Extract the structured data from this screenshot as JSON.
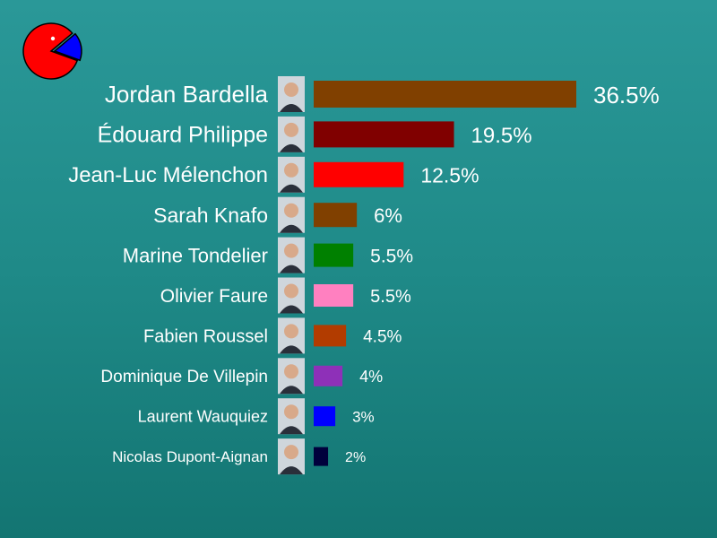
{
  "chart_data": {
    "type": "bar",
    "orientation": "horizontal",
    "categories": [
      "Jordan Bardella",
      "Édouard Philippe",
      "Jean-Luc Mélenchon",
      "Sarah Knafo",
      "Marine Tondelier",
      "Olivier Faure",
      "Fabien Roussel",
      "Dominique De Villepin",
      "Laurent Wauquiez",
      "Nicolas Dupont-Aignan"
    ],
    "values": [
      36.5,
      19.5,
      12.5,
      6,
      5.5,
      5.5,
      4.5,
      4,
      3,
      2
    ],
    "value_labels": [
      "36.5%",
      "19.5%",
      "12.5%",
      "6%",
      "5.5%",
      "5.5%",
      "4.5%",
      "4%",
      "3%",
      "2%"
    ],
    "bar_colors": [
      "#804000",
      "#800000",
      "#ff0000",
      "#804000",
      "#008000",
      "#ff80c0",
      "#b23c00",
      "#8e30b8",
      "#0000ff",
      "#00003c"
    ],
    "title": "",
    "xlabel": "",
    "ylabel": "",
    "grid": false,
    "legend": "none",
    "logo_icon": "pie-chart-icon",
    "logo_colors": [
      "#ff0000",
      "#0000ff"
    ],
    "photo_icons": "candidate-portrait-icon"
  }
}
